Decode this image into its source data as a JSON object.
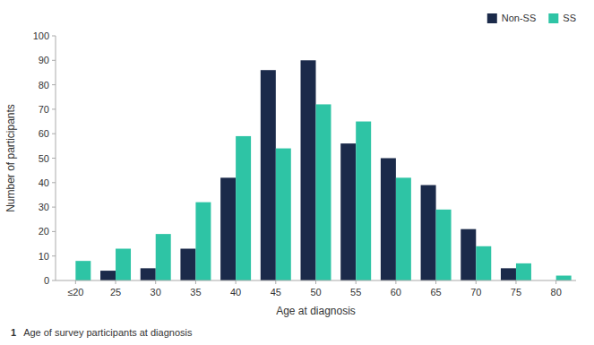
{
  "chart_data": {
    "type": "bar",
    "xlabel": "Age at diagnosis",
    "ylabel": "Number of participants",
    "annotations": [
      "1",
      "Age of survey participants at diagnosis"
    ],
    "categories": [
      "≤20",
      "25",
      "30",
      "35",
      "40",
      "45",
      "50",
      "55",
      "60",
      "65",
      "70",
      "75",
      "80"
    ],
    "series": [
      {
        "name": "Non-SS",
        "color": "#1b2a4a",
        "values": [
          0,
          4,
          5,
          13,
          42,
          86,
          90,
          56,
          50,
          39,
          21,
          5,
          0
        ]
      },
      {
        "name": "SS",
        "color": "#2ec4a5",
        "values": [
          8,
          13,
          19,
          32,
          59,
          54,
          72,
          65,
          42,
          29,
          14,
          7,
          2
        ]
      }
    ],
    "ylim": [
      0,
      100
    ],
    "yticks": [
      0,
      10,
      20,
      30,
      40,
      50,
      60,
      70,
      80,
      90,
      100
    ],
    "grid": false,
    "legend": "upper right"
  }
}
